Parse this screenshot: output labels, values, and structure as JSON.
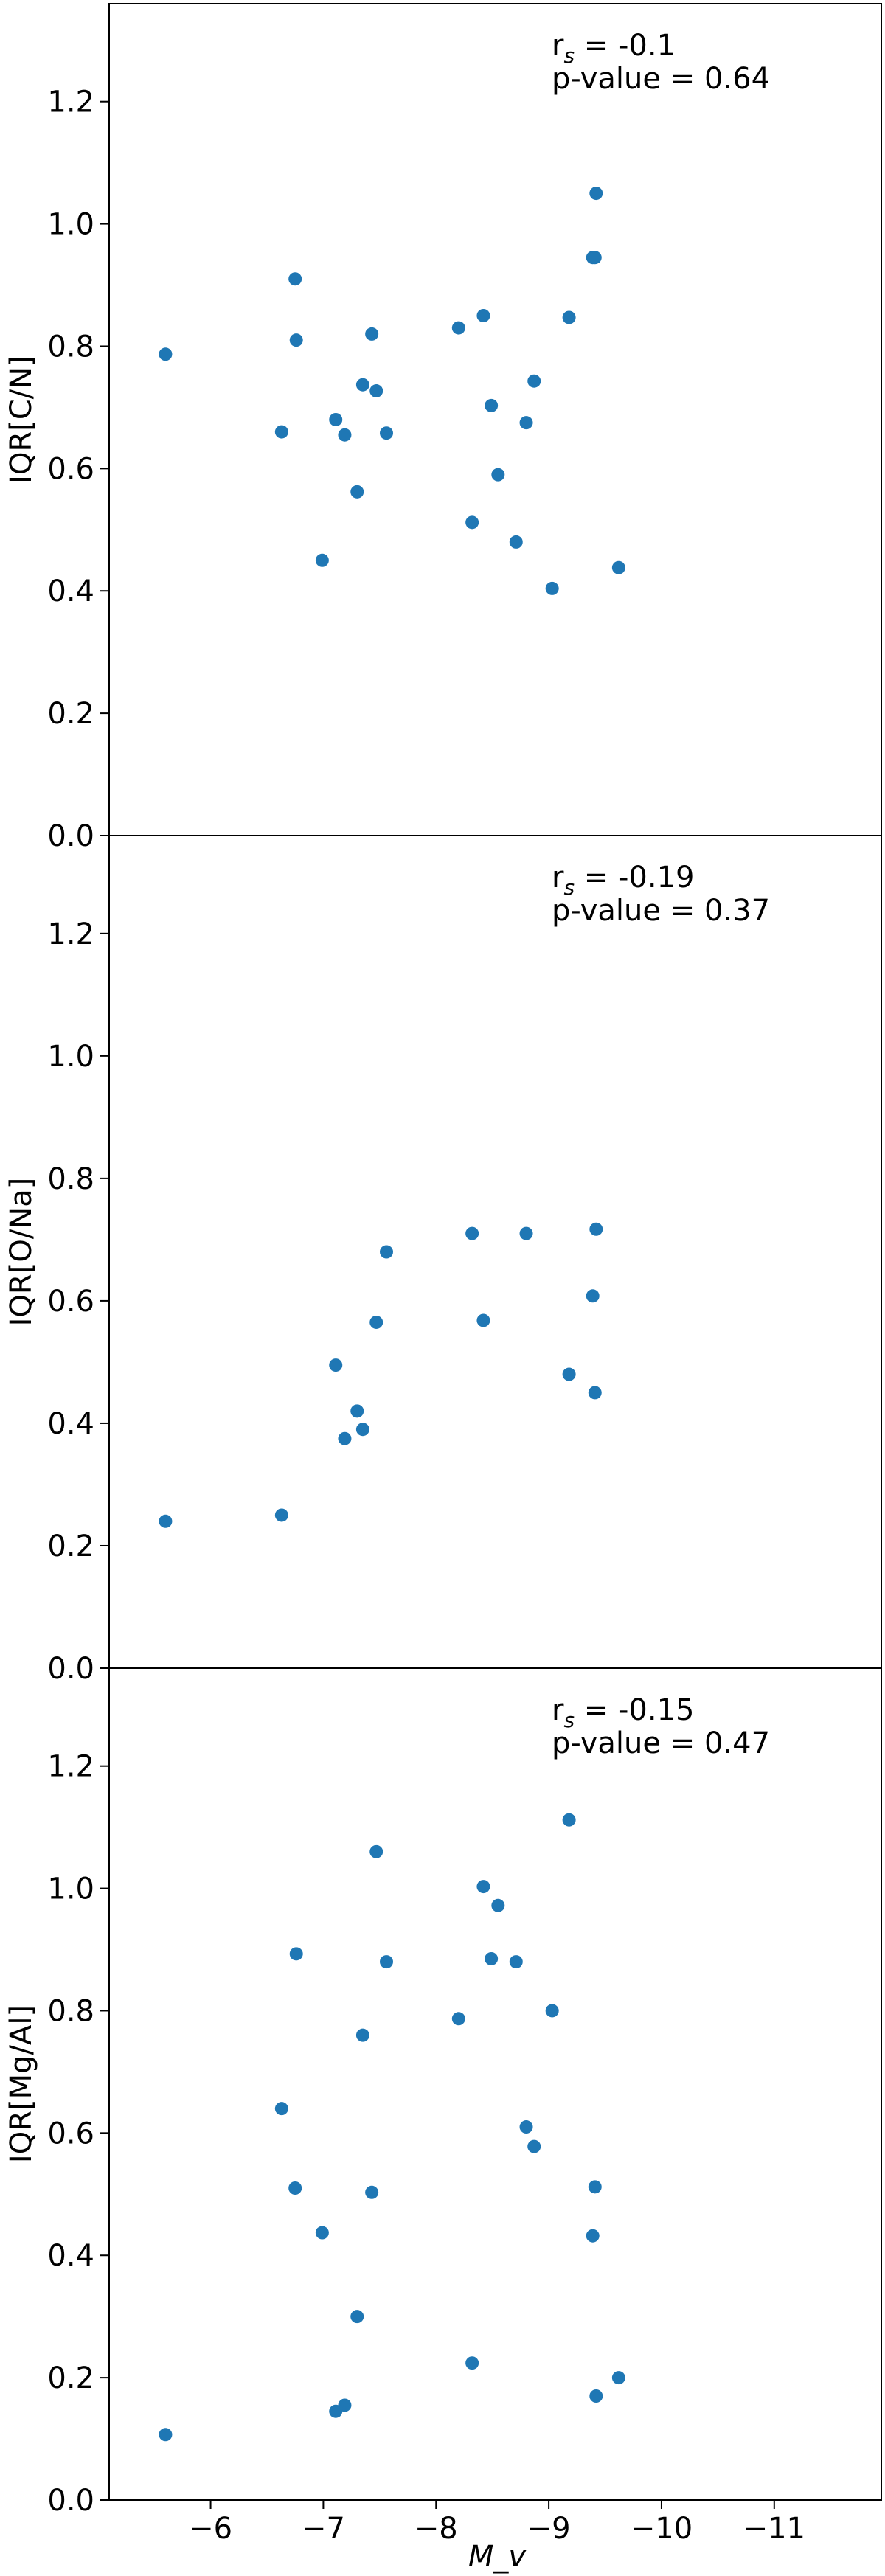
{
  "chart_data": [
    {
      "type": "scatter",
      "ylabel": "IQR[C/N]",
      "ylim": [
        0.0,
        1.36
      ],
      "yticks": [
        "0.0",
        "0.2",
        "0.4",
        "0.6",
        "0.8",
        "1.0",
        "1.2"
      ],
      "annotation": [
        "r_s = -0.1",
        "p-value = 0.64"
      ],
      "x": [
        -5.6,
        -6.63,
        -6.75,
        -6.76,
        -6.99,
        -7.11,
        -7.19,
        -7.3,
        -7.35,
        -7.43,
        -7.47,
        -7.56,
        -8.2,
        -8.32,
        -8.42,
        -8.49,
        -8.55,
        -8.71,
        -8.8,
        -8.87,
        -9.03,
        -9.18,
        -9.39,
        -9.41,
        -9.42,
        -9.62
      ],
      "y": [
        0.787,
        0.66,
        0.91,
        0.81,
        0.45,
        0.68,
        0.655,
        0.562,
        0.737,
        0.82,
        0.727,
        0.658,
        0.83,
        0.512,
        0.85,
        0.703,
        0.59,
        0.48,
        0.675,
        0.743,
        0.404,
        0.847,
        0.945,
        0.945,
        1.05,
        0.438
      ]
    },
    {
      "type": "scatter",
      "ylabel": "IQR[O/Na]",
      "ylim": [
        0.0,
        1.36
      ],
      "yticks": [
        "0.0",
        "0.2",
        "0.4",
        "0.6",
        "0.8",
        "1.0",
        "1.2"
      ],
      "annotation": [
        "r_s = -0.19",
        "p-value = 0.37"
      ],
      "x": [
        -5.6,
        -6.63,
        -7.11,
        -7.19,
        -7.3,
        -7.35,
        -7.47,
        -7.56,
        -8.32,
        -8.42,
        -8.8,
        -9.18,
        -9.39,
        -9.41,
        -9.42
      ],
      "y": [
        0.24,
        0.25,
        0.495,
        0.375,
        0.42,
        0.39,
        0.565,
        0.68,
        0.71,
        0.568,
        0.71,
        0.48,
        0.608,
        0.45,
        0.717
      ]
    },
    {
      "type": "scatter",
      "ylabel": "IQR[Mg/Al]",
      "ylim": [
        0.0,
        1.36
      ],
      "yticks": [
        "0.0",
        "0.2",
        "0.4",
        "0.6",
        "0.8",
        "1.0",
        "1.2"
      ],
      "annotation": [
        "r_s = -0.15",
        "p-value = 0.47"
      ],
      "x": [
        -5.6,
        -6.63,
        -6.75,
        -6.76,
        -6.99,
        -7.11,
        -7.19,
        -7.3,
        -7.35,
        -7.43,
        -7.47,
        -7.56,
        -8.2,
        -8.32,
        -8.42,
        -8.49,
        -8.55,
        -8.71,
        -8.8,
        -8.87,
        -9.03,
        -9.18,
        -9.39,
        -9.41,
        -9.42,
        -9.62
      ],
      "y": [
        0.107,
        0.64,
        0.51,
        0.893,
        0.437,
        0.145,
        0.155,
        0.3,
        0.76,
        0.503,
        1.06,
        0.88,
        0.787,
        0.224,
        1.003,
        0.885,
        0.972,
        0.88,
        0.61,
        0.578,
        0.8,
        1.112,
        0.432,
        0.512,
        0.17,
        0.2
      ]
    }
  ],
  "shared_x": {
    "label": "M_v",
    "xlim": [
      -5.1,
      -11.95
    ],
    "inverted": true,
    "ticks": [
      -6,
      -7,
      -8,
      -9,
      -10,
      -11
    ],
    "tick_labels": [
      "−6",
      "−7",
      "−8",
      "−9",
      "−10",
      "−11"
    ]
  },
  "colors": {
    "marker": "#1f77b4",
    "axes": "#000000",
    "background": "#ffffff"
  }
}
